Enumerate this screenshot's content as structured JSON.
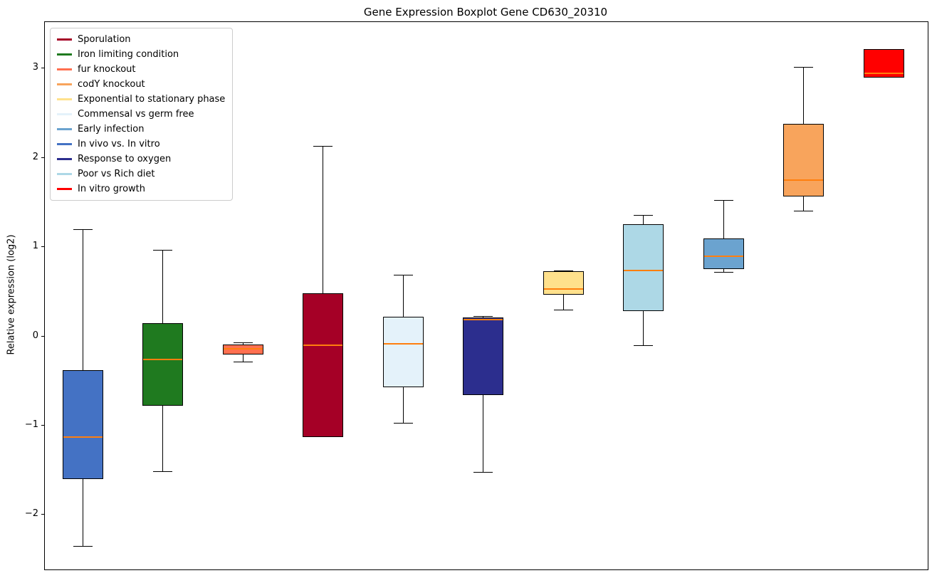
{
  "chart_data": {
    "type": "boxplot",
    "title": "Gene Expression Boxplot Gene CD630_20310",
    "xlabel": "",
    "ylabel": "Relative expression (log2)",
    "ylim": [
      -2.61,
      3.52
    ],
    "yticks": [
      -2,
      -1,
      0,
      1,
      2,
      3
    ],
    "ytick_labels": [
      "−2",
      "−1",
      "0",
      "1",
      "2",
      "3"
    ],
    "grid": false,
    "legend_position": "upper left",
    "box_edge_color": "#000000",
    "median_color": "#FF7F0E",
    "legend": [
      {
        "label": "Sporulation",
        "color": "#A50026"
      },
      {
        "label": "Iron limiting condition",
        "color": "#1F7A1F"
      },
      {
        "label": "fur knockout",
        "color": "#FF7050"
      },
      {
        "label": "codY knockout",
        "color": "#F8A45C"
      },
      {
        "label": "Exponential to stationary phase",
        "color": "#FFE18C"
      },
      {
        "label": "Commensal vs germ free",
        "color": "#E4F2FA"
      },
      {
        "label": "Early infection",
        "color": "#6BA3CF"
      },
      {
        "label": "In vivo vs. In vitro",
        "color": "#4472C4"
      },
      {
        "label": "Response to oxygen",
        "color": "#2C2E8E"
      },
      {
        "label": "Poor vs Rich diet",
        "color": "#ADD8E6"
      },
      {
        "label": "In vitro growth",
        "color": "#FF0000"
      }
    ],
    "series": [
      {
        "name": "In vivo vs. In vitro",
        "color": "#4472C4",
        "whisker_low": -2.35,
        "q1": -1.6,
        "median": -1.13,
        "q3": -0.38,
        "whisker_high": 1.2
      },
      {
        "name": "Iron limiting condition",
        "color": "#1F7A1F",
        "whisker_low": -1.51,
        "q1": -0.78,
        "median": -0.26,
        "q3": 0.15,
        "whisker_high": 0.97
      },
      {
        "name": "fur knockout",
        "color": "#FF7050",
        "whisker_low": -0.28,
        "q1": -0.2,
        "median": -0.14,
        "q3": -0.09,
        "whisker_high": -0.07
      },
      {
        "name": "Sporulation",
        "color": "#A50026",
        "whisker_low": -1.13,
        "q1": -1.13,
        "median": -0.1,
        "q3": 0.48,
        "whisker_high": 2.13
      },
      {
        "name": "Commensal vs germ free",
        "color": "#E4F2FA",
        "whisker_low": -0.97,
        "q1": -0.57,
        "median": -0.08,
        "q3": 0.22,
        "whisker_high": 0.69
      },
      {
        "name": "Response to oxygen",
        "color": "#2C2E8E",
        "whisker_low": -1.52,
        "q1": -0.66,
        "median": 0.19,
        "q3": 0.21,
        "whisker_high": 0.23
      },
      {
        "name": "Exponential to stationary phase",
        "color": "#FFE18C",
        "whisker_low": 0.3,
        "q1": 0.47,
        "median": 0.53,
        "q3": 0.73,
        "whisker_high": 0.74
      },
      {
        "name": "Poor vs Rich diet",
        "color": "#ADD8E6",
        "whisker_low": -0.1,
        "q1": 0.28,
        "median": 0.74,
        "q3": 1.26,
        "whisker_high": 1.36
      },
      {
        "name": "Early infection",
        "color": "#6BA3CF",
        "whisker_low": 0.72,
        "q1": 0.75,
        "median": 0.9,
        "q3": 1.1,
        "whisker_high": 1.53
      },
      {
        "name": "codY knockout",
        "color": "#F8A45C",
        "whisker_low": 1.41,
        "q1": 1.57,
        "median": 1.75,
        "q3": 2.38,
        "whisker_high": 3.02
      },
      {
        "name": "In vitro growth",
        "color": "#FF0000",
        "whisker_low": 2.9,
        "q1": 2.9,
        "median": 2.95,
        "q3": 3.22,
        "whisker_high": 3.22
      }
    ]
  }
}
